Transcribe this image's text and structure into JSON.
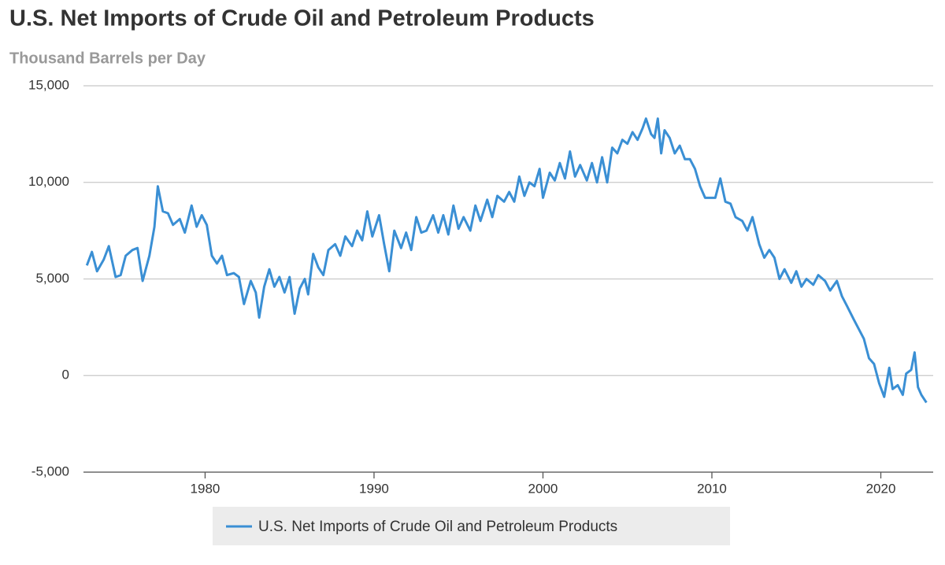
{
  "chart_data": {
    "type": "line",
    "title": "U.S. Net Imports of Crude Oil and Petroleum Products",
    "subtitle": "Thousand Barrels per Day",
    "xlim": [
      1972.8,
      2023.1
    ],
    "xticks": [
      1980,
      1990,
      2000,
      2010,
      2020
    ],
    "ylim": [
      -5000,
      15000
    ],
    "yticks": [
      {
        "value": -5000,
        "label": "-5,000"
      },
      0,
      {
        "value": 5000,
        "label": "5,000"
      },
      {
        "value": 10000,
        "label": "10,000"
      },
      {
        "value": 15000,
        "label": "15,000"
      }
    ],
    "grid": true,
    "x": [
      1973.0,
      1973.3,
      1973.6,
      1974.0,
      1974.3,
      1974.7,
      1975.0,
      1975.3,
      1975.7,
      1976.0,
      1976.3,
      1976.7,
      1977.0,
      1977.2,
      1977.5,
      1977.8,
      1978.1,
      1978.5,
      1978.8,
      1979.2,
      1979.5,
      1979.8,
      1980.1,
      1980.4,
      1980.7,
      1981.0,
      1981.3,
      1981.7,
      1982.0,
      1982.3,
      1982.7,
      1983.0,
      1983.2,
      1983.5,
      1983.8,
      1984.1,
      1984.4,
      1984.7,
      1985.0,
      1985.3,
      1985.6,
      1985.9,
      1986.1,
      1986.4,
      1986.7,
      1987.0,
      1987.3,
      1987.7,
      1988.0,
      1988.3,
      1988.7,
      1989.0,
      1989.3,
      1989.6,
      1989.9,
      1990.3,
      1990.6,
      1990.9,
      1991.2,
      1991.6,
      1991.9,
      1992.2,
      1992.5,
      1992.8,
      1993.1,
      1993.5,
      1993.8,
      1994.1,
      1994.4,
      1994.7,
      1995.0,
      1995.3,
      1995.7,
      1996.0,
      1996.3,
      1996.7,
      1997.0,
      1997.3,
      1997.7,
      1998.0,
      1998.3,
      1998.6,
      1998.9,
      1999.2,
      1999.5,
      1999.8,
      2000.0,
      2000.4,
      2000.7,
      2001.0,
      2001.3,
      2001.6,
      2001.9,
      2002.2,
      2002.6,
      2002.9,
      2003.2,
      2003.5,
      2003.8,
      2004.1,
      2004.4,
      2004.7,
      2005.0,
      2005.3,
      2005.6,
      2005.9,
      2006.1,
      2006.4,
      2006.6,
      2006.8,
      2007.0,
      2007.2,
      2007.5,
      2007.8,
      2008.1,
      2008.4,
      2008.7,
      2009.0,
      2009.3,
      2009.6,
      2009.9,
      2010.2,
      2010.5,
      2010.8,
      2011.1,
      2011.4,
      2011.8,
      2012.1,
      2012.4,
      2012.8,
      2013.1,
      2013.4,
      2013.7,
      2014.0,
      2014.3,
      2014.7,
      2015.0,
      2015.3,
      2015.6,
      2016.0,
      2016.3,
      2016.7,
      2017.0,
      2017.4,
      2017.7,
      2018.0,
      2018.4,
      2018.7,
      2019.0,
      2019.3,
      2019.6,
      2019.9,
      2020.2,
      2020.5,
      2020.7,
      2021.0,
      2021.3,
      2021.5,
      2021.8,
      2022.0,
      2022.2,
      2022.4,
      2022.7
    ],
    "series": [
      {
        "name": "U.S. Net Imports of Crude Oil and Petroleum Products",
        "color": "#3a8fd4",
        "values": [
          5700,
          6400,
          5400,
          6000,
          6700,
          5100,
          5200,
          6200,
          6500,
          6600,
          4900,
          6200,
          7700,
          9800,
          8500,
          8400,
          7800,
          8100,
          7400,
          8800,
          7700,
          8300,
          7800,
          6200,
          5800,
          6200,
          5200,
          5300,
          5100,
          3700,
          4900,
          4300,
          3000,
          4600,
          5500,
          4600,
          5100,
          4300,
          5100,
          3200,
          4500,
          5000,
          4200,
          6300,
          5600,
          5200,
          6500,
          6800,
          6200,
          7200,
          6700,
          7500,
          7000,
          8500,
          7200,
          8300,
          6800,
          5400,
          7500,
          6600,
          7400,
          6500,
          8200,
          7400,
          7500,
          8300,
          7400,
          8300,
          7300,
          8800,
          7600,
          8200,
          7500,
          8800,
          8000,
          9100,
          8200,
          9300,
          9000,
          9500,
          9000,
          10300,
          9300,
          10000,
          9800,
          10700,
          9200,
          10500,
          10100,
          11000,
          10200,
          11600,
          10300,
          10900,
          10100,
          11000,
          10000,
          11300,
          10000,
          11800,
          11500,
          12200,
          12000,
          12600,
          12200,
          12800,
          13300,
          12500,
          12300,
          13300,
          11500,
          12700,
          12300,
          11500,
          11900,
          11200,
          11200,
          10700,
          9800,
          9200,
          9200,
          9200,
          10200,
          9000,
          8900,
          8200,
          8000,
          7500,
          8200,
          6800,
          6100,
          6500,
          6100,
          5000,
          5500,
          4800,
          5400,
          4600,
          5000,
          4700,
          5200,
          4900,
          4400,
          4900,
          4100,
          3600,
          2900,
          2400,
          1900,
          900,
          600,
          -400,
          -1100,
          400,
          -700,
          -500,
          -1000,
          100,
          300,
          1200,
          -600,
          -1000,
          -1400
        ]
      }
    ]
  }
}
